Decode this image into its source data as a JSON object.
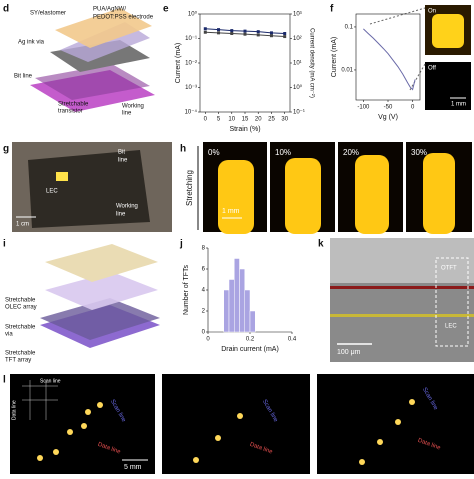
{
  "panel_d": {
    "letter": "d",
    "sy": "SY/elastomer",
    "electrode": [
      "PUA/AgNW/",
      "PEDOT:PSS electrode"
    ],
    "via": "Ag ink via",
    "bit_line": "Bit line",
    "transistor": [
      "Stretchable",
      "transistor"
    ],
    "working_line": [
      "Working",
      "line"
    ]
  },
  "panel_g": {
    "letter": "g",
    "bit_line": [
      "Bit",
      "line"
    ],
    "lec": "LEC",
    "scale": "1 cm",
    "working_line": [
      "Working",
      "line"
    ]
  },
  "panel_h": {
    "letter": "h",
    "axis": "Stretching",
    "strains": [
      "0%",
      "10%",
      "20%",
      "30%"
    ],
    "scale": "1 mm"
  },
  "panel_i": {
    "letter": "i",
    "layers": [
      [
        "Stretchable",
        "OLEC array"
      ],
      [
        "Stretchable",
        "via"
      ],
      [
        "Stretchable",
        "TFT array"
      ]
    ]
  },
  "panel_k": {
    "letter": "k",
    "otft": "OTFT",
    "lec": "LEC",
    "scale": "100 μm"
  },
  "panel_l": {
    "letter": "l",
    "inset_scan": "Scan line",
    "inset_data": "Data line",
    "frames": [
      {
        "scan": "Scan line",
        "data": "Data line"
      },
      {
        "scan": "Scan line",
        "data": "Data line"
      },
      {
        "scan": "Scan line",
        "data": "Data line"
      }
    ],
    "scale": "5 mm"
  },
  "chart_data": [
    {
      "type": "line",
      "letter": "e",
      "xlabel": "Strain (%)",
      "ylabel": "Current (mA)",
      "y2label": "Current density (mA cm⁻²)",
      "log_y": true,
      "x": [
        0,
        5,
        10,
        15,
        20,
        25,
        30
      ],
      "series": [
        {
          "color": "#1b2a6b",
          "values": [
            0.25,
            0.23,
            0.21,
            0.2,
            0.19,
            0.17,
            0.16
          ]
        },
        {
          "color": "#444444",
          "axis": "y2",
          "values": [
            180,
            170,
            160,
            150,
            140,
            130,
            120
          ]
        }
      ],
      "xlim": [
        -2,
        32
      ],
      "xticks": [
        0,
        5,
        10,
        15,
        20,
        25,
        30
      ],
      "ylim": [
        0.0001,
        1
      ],
      "yticks": [
        {
          "value": 1,
          "label": "10⁰"
        },
        {
          "value": 0.1,
          "label": "10⁻¹"
        },
        {
          "value": 0.01,
          "label": "10⁻²"
        },
        {
          "value": 0.001,
          "label": "10⁻³"
        },
        {
          "value": 0.0001,
          "label": "10⁻⁴"
        }
      ],
      "y2lim": [
        0.1,
        1000
      ],
      "y2ticks": [
        {
          "value": 1000,
          "label": "10³"
        },
        {
          "value": 100,
          "label": "10²"
        },
        {
          "value": 10,
          "label": "10¹"
        },
        {
          "value": 1,
          "label": "10⁰"
        },
        {
          "value": 0.1,
          "label": "10⁻¹"
        }
      ]
    },
    {
      "type": "line",
      "letter": "f",
      "xlabel": "Vg (V)",
      "ylabel": "Current (mA)",
      "log_y": true,
      "x": [
        -100,
        -90,
        -80,
        -70,
        -60,
        -50,
        -40,
        -30,
        -20,
        -10,
        -5,
        0,
        5
      ],
      "series": [
        {
          "color": "#6a6aa8",
          "values": [
            0.09,
            0.07,
            0.055,
            0.042,
            0.032,
            0.024,
            0.017,
            0.012,
            0.008,
            0.005,
            0.004,
            0.0035,
            0.006
          ]
        }
      ],
      "xlim": [
        -115,
        15
      ],
      "xticks": [
        -100,
        -50,
        0
      ],
      "ylim": [
        0.002,
        0.2
      ],
      "yticks": [
        0.1,
        0.01
      ],
      "insets": {
        "on": "On",
        "off": "Off",
        "scale": "1 mm"
      }
    },
    {
      "type": "histogram",
      "letter": "j",
      "xlabel": "Drain current (mA)",
      "ylabel": "Number of TFTs",
      "color": "#aaa4e2",
      "bins": [
        0.075,
        0.1,
        0.125,
        0.15,
        0.175,
        0.2,
        0.225
      ],
      "values": [
        4,
        5,
        7,
        6,
        4,
        2
      ],
      "xlim": [
        0,
        0.4
      ],
      "xticks": [
        0,
        0.2,
        0.4
      ],
      "ylim": [
        0,
        8
      ],
      "yticks": [
        0,
        2,
        4,
        6,
        8
      ]
    }
  ]
}
